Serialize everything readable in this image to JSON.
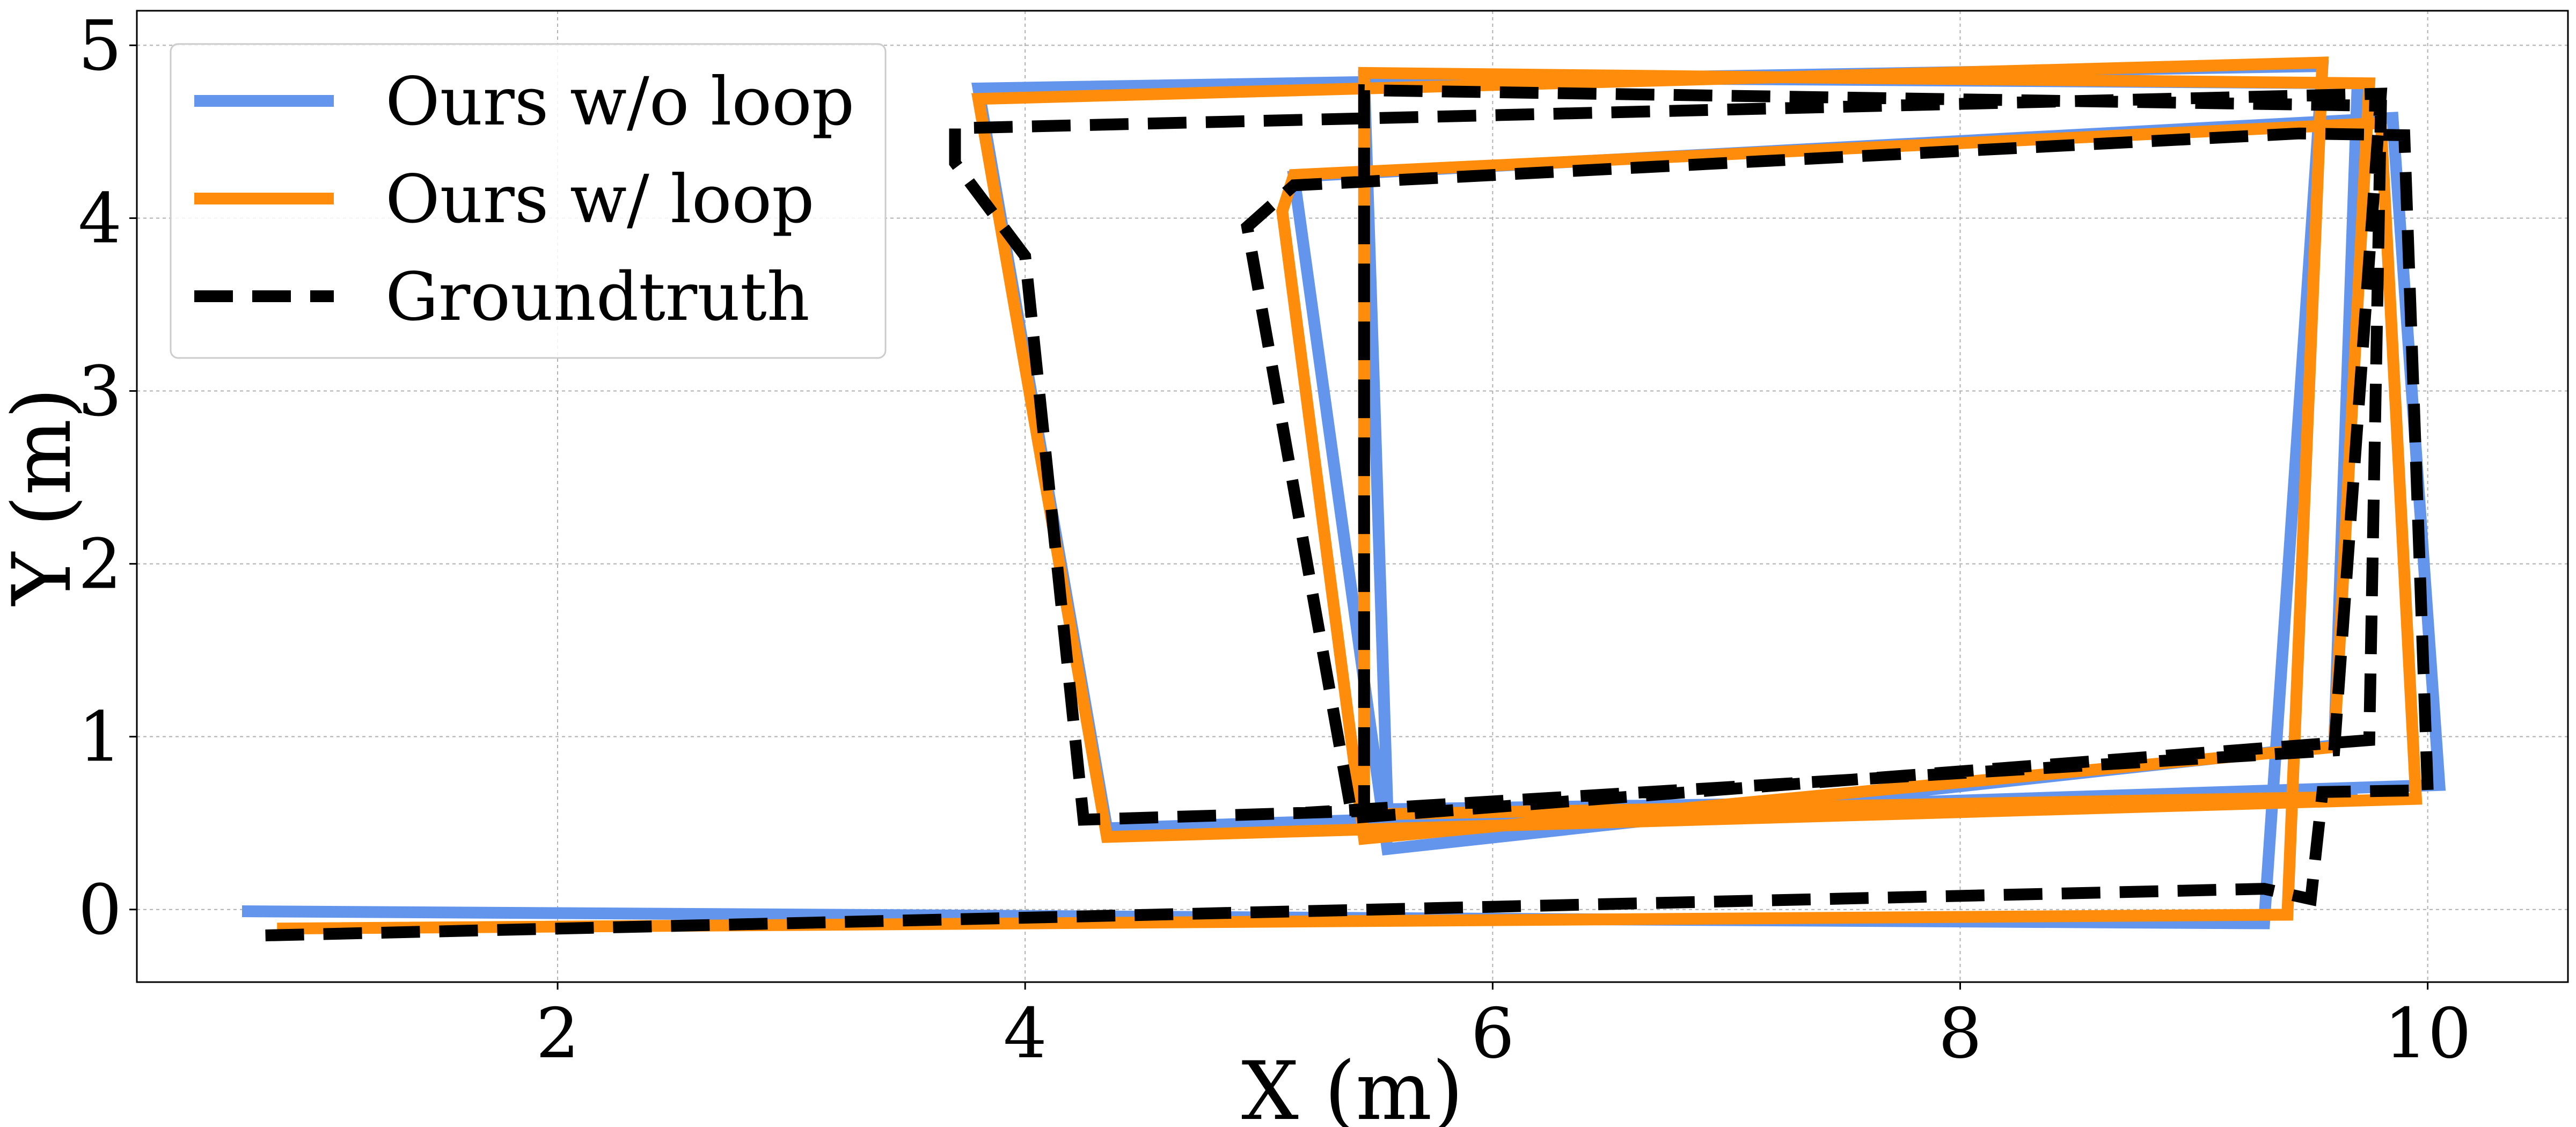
{
  "chart_data": {
    "type": "line",
    "title": "",
    "xlabel": "X (m)",
    "ylabel": "Y (m)",
    "xlim": [
      0.2,
      10.6
    ],
    "ylim": [
      -0.42,
      5.2
    ],
    "xticks": [
      2,
      4,
      6,
      8,
      10
    ],
    "yticks": [
      0,
      1,
      2,
      3,
      4,
      5
    ],
    "xtick_labels": [
      "2",
      "4",
      "6",
      "8",
      "10"
    ],
    "ytick_labels": [
      "0",
      "1",
      "2",
      "3",
      "4",
      "5"
    ],
    "grid": true,
    "legend_position": "top-left",
    "series": [
      {
        "name": "Ours w/o loop",
        "color": "#6495ED",
        "style": "solid",
        "points": [
          [
            0.65,
            -0.01
          ],
          [
            9.3,
            -0.08
          ],
          [
            9.55,
            4.88
          ],
          [
            3.8,
            4.75
          ],
          [
            4.35,
            0.47
          ],
          [
            10.05,
            0.72
          ],
          [
            9.85,
            4.58
          ],
          [
            5.15,
            4.24
          ],
          [
            5.55,
            0.35
          ],
          [
            9.6,
            0.95
          ],
          [
            9.7,
            4.78
          ],
          [
            5.45,
            4.82
          ],
          [
            5.55,
            0.58
          ],
          [
            9.7,
            0.66
          ]
        ]
      },
      {
        "name": "Ours w/ loop",
        "color": "#FF8C0A",
        "style": "solid",
        "points": [
          [
            0.8,
            -0.11
          ],
          [
            9.4,
            -0.03
          ],
          [
            9.55,
            4.9
          ],
          [
            3.8,
            4.69
          ],
          [
            4.35,
            0.42
          ],
          [
            9.95,
            0.64
          ],
          [
            9.8,
            4.55
          ],
          [
            5.15,
            4.25
          ],
          [
            5.1,
            4.04
          ],
          [
            5.45,
            0.41
          ],
          [
            9.6,
            0.94
          ],
          [
            9.75,
            4.78
          ],
          [
            5.45,
            4.84
          ],
          [
            5.45,
            0.55
          ],
          [
            9.6,
            0.65
          ]
        ]
      },
      {
        "name": "Groundtruth",
        "color": "#000000",
        "style": "dashed",
        "points": [
          [
            0.75,
            -0.15
          ],
          [
            9.3,
            0.12
          ],
          [
            9.5,
            0.06
          ],
          [
            9.55,
            0.68
          ],
          [
            10.0,
            0.69
          ],
          [
            9.9,
            4.48
          ],
          [
            9.45,
            4.49
          ],
          [
            5.15,
            4.19
          ],
          [
            4.95,
            3.95
          ],
          [
            5.4,
            0.53
          ],
          [
            9.75,
            0.98
          ],
          [
            9.8,
            4.65
          ],
          [
            5.45,
            4.74
          ],
          [
            5.45,
            0.57
          ],
          [
            4.25,
            0.52
          ],
          [
            4.0,
            3.78
          ],
          [
            3.7,
            4.32
          ],
          [
            3.7,
            4.52
          ],
          [
            9.8,
            4.72
          ],
          [
            9.6,
            0.92
          ],
          [
            5.2,
            0.56
          ]
        ]
      }
    ]
  }
}
